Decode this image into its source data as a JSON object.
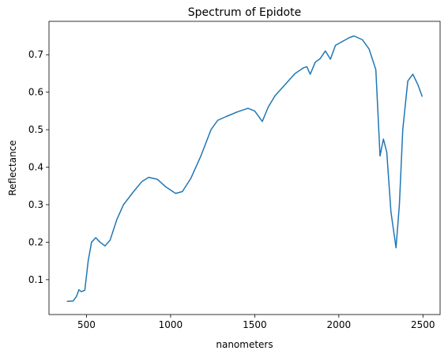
{
  "chart_data": {
    "type": "line",
    "title": "Spectrum of Epidote",
    "xlabel": "nanometers",
    "ylabel": "Reflectance",
    "x": [
      383,
      420,
      440,
      455,
      470,
      490,
      510,
      530,
      555,
      580,
      610,
      640,
      680,
      720,
      780,
      830,
      870,
      920,
      970,
      1030,
      1070,
      1120,
      1180,
      1240,
      1280,
      1330,
      1400,
      1460,
      1500,
      1545,
      1580,
      1620,
      1680,
      1740,
      1790,
      1810,
      1830,
      1860,
      1890,
      1920,
      1950,
      1980,
      2020,
      2060,
      2090,
      2140,
      2180,
      2220,
      2245,
      2265,
      2285,
      2310,
      2340,
      2360,
      2380,
      2410,
      2440,
      2470,
      2496
    ],
    "series": [
      {
        "name": "Epidote",
        "color": "#1f77b4",
        "values": [
          0.042,
          0.043,
          0.055,
          0.073,
          0.068,
          0.072,
          0.15,
          0.2,
          0.212,
          0.2,
          0.19,
          0.205,
          0.26,
          0.3,
          0.335,
          0.362,
          0.373,
          0.368,
          0.348,
          0.33,
          0.335,
          0.37,
          0.43,
          0.5,
          0.525,
          0.535,
          0.548,
          0.557,
          0.55,
          0.522,
          0.56,
          0.59,
          0.62,
          0.65,
          0.665,
          0.668,
          0.648,
          0.68,
          0.69,
          0.71,
          0.688,
          0.725,
          0.735,
          0.745,
          0.75,
          0.74,
          0.715,
          0.66,
          0.43,
          0.475,
          0.44,
          0.28,
          0.185,
          0.3,
          0.5,
          0.63,
          0.648,
          0.62,
          0.588
        ]
      }
    ],
    "xlim": [
      277,
      2602
    ],
    "xticks": [
      500,
      1000,
      1500,
      2000,
      2500
    ],
    "ylim": [
      0.007,
      0.789
    ],
    "yticks": [
      0.1,
      0.2,
      0.3,
      0.4,
      0.5,
      0.6,
      0.7
    ]
  }
}
